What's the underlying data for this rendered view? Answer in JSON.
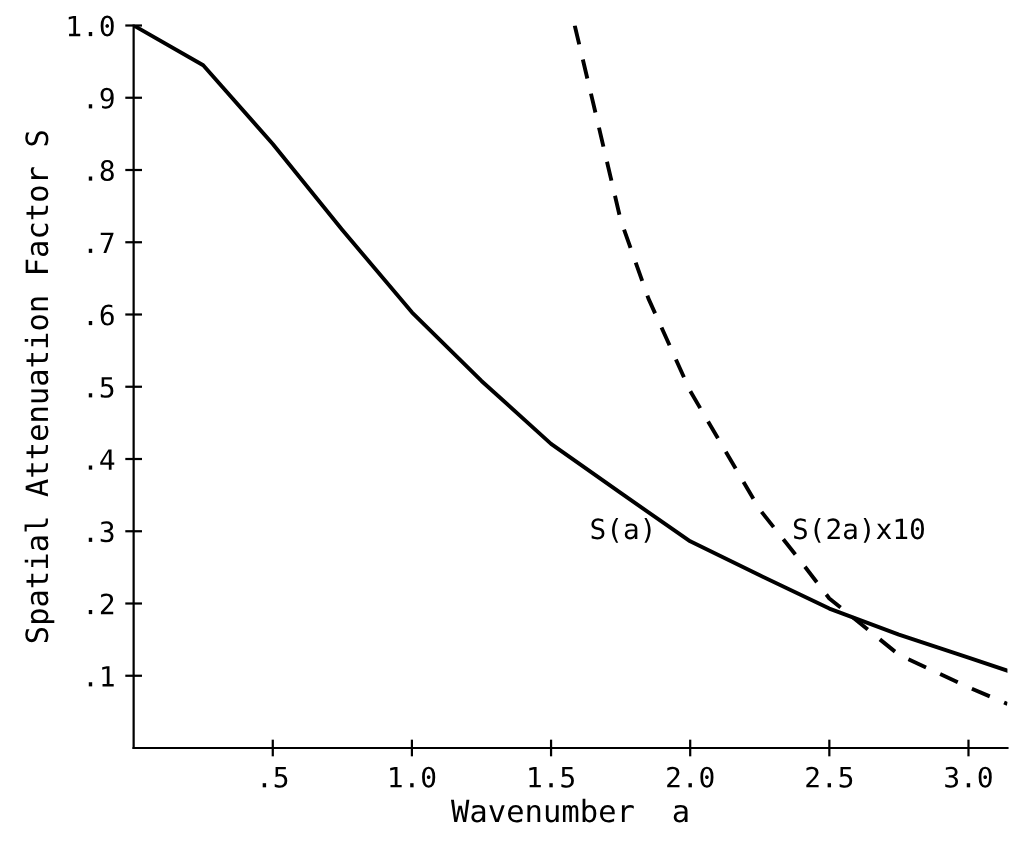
{
  "chart_data": {
    "type": "line",
    "xlabel": "Wavenumber  a",
    "ylabel": "Spatial Attenuation Factor S",
    "xlim": [
      0,
      3.14
    ],
    "ylim": [
      0,
      1.0
    ],
    "xticks": [
      {
        "value": 0.5,
        "label": ".5"
      },
      {
        "value": 1.0,
        "label": "1.0"
      },
      {
        "value": 1.5,
        "label": "1.5"
      },
      {
        "value": 2.0,
        "label": "2.0"
      },
      {
        "value": 2.5,
        "label": "2.5"
      },
      {
        "value": 3.0,
        "label": "3.0"
      }
    ],
    "yticks": [
      {
        "value": 0.1,
        "label": ".1"
      },
      {
        "value": 0.2,
        "label": ".2"
      },
      {
        "value": 0.3,
        "label": ".3"
      },
      {
        "value": 0.4,
        "label": ".4"
      },
      {
        "value": 0.5,
        "label": ".5"
      },
      {
        "value": 0.6,
        "label": ".6"
      },
      {
        "value": 0.7,
        "label": ".7"
      },
      {
        "value": 0.8,
        "label": ".8"
      },
      {
        "value": 0.9,
        "label": ".9"
      },
      {
        "value": 1.0,
        "label": "1.0"
      }
    ],
    "grid": false,
    "legend": false,
    "series": [
      {
        "name": "S(a)",
        "color": "#000000",
        "line_style": "solid",
        "x": [
          0,
          0.25,
          0.5,
          0.75,
          1.0,
          1.25,
          1.5,
          1.75,
          2.0,
          2.25,
          2.5,
          2.75,
          3.0,
          3.14
        ],
        "values": [
          1.0,
          0.945,
          0.836,
          0.717,
          0.603,
          0.508,
          0.421,
          0.353,
          0.286,
          0.239,
          0.193,
          0.157,
          0.125,
          0.107
        ]
      },
      {
        "name": "S(2a)x10",
        "color": "#000000",
        "line_style": "dashed",
        "x": [
          1.585,
          1.65,
          1.75,
          1.85,
          2.0,
          2.25,
          2.4,
          2.5,
          2.75,
          3.0,
          3.14
        ],
        "values": [
          1.0,
          0.895,
          0.731,
          0.622,
          0.494,
          0.33,
          0.257,
          0.207,
          0.129,
          0.084,
          0.061
        ]
      }
    ]
  }
}
